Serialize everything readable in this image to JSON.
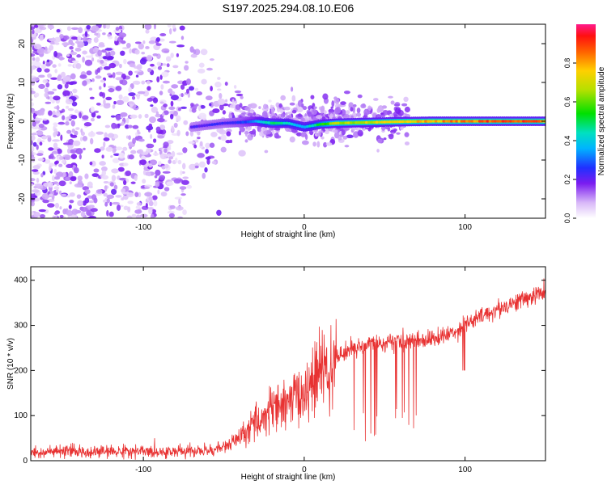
{
  "figure_title": "S197.2025.294.08.10.E06",
  "chart_data": [
    {
      "type": "heatmap",
      "xlabel": "Height of straight line (km)",
      "ylabel": "Frequency (Hz)",
      "xlim": [
        -170,
        150
      ],
      "ylim": [
        -25,
        25
      ],
      "xticks": [
        -100,
        0,
        100
      ],
      "yticks": [
        -20,
        -10,
        0,
        10,
        20
      ],
      "colorbar": {
        "label": "Normalized spectral amplitude",
        "range": [
          0,
          1
        ],
        "ticks": [
          0.0,
          0.2,
          0.4,
          0.6,
          0.8
        ]
      },
      "ridge": [
        {
          "x": -70,
          "y": -1.5,
          "amp": 0.22
        },
        {
          "x": -60,
          "y": -1.0,
          "amp": 0.25
        },
        {
          "x": -50,
          "y": -0.5,
          "amp": 0.25
        },
        {
          "x": -40,
          "y": -0.3,
          "amp": 0.28
        },
        {
          "x": -30,
          "y": 0.0,
          "amp": 0.35
        },
        {
          "x": -20,
          "y": -0.5,
          "amp": 0.55
        },
        {
          "x": -10,
          "y": -0.5,
          "amp": 0.45
        },
        {
          "x": 0,
          "y": -1.5,
          "amp": 0.4
        },
        {
          "x": 10,
          "y": -0.8,
          "amp": 0.55
        },
        {
          "x": 20,
          "y": -0.5,
          "amp": 0.7
        },
        {
          "x": 40,
          "y": -0.3,
          "amp": 0.75
        },
        {
          "x": 60,
          "y": -0.1,
          "amp": 0.78
        },
        {
          "x": 80,
          "y": 0.0,
          "amp": 0.85
        },
        {
          "x": 100,
          "y": 0.0,
          "amp": 0.9
        },
        {
          "x": 120,
          "y": 0.0,
          "amp": 0.95
        },
        {
          "x": 140,
          "y": 0.0,
          "amp": 0.95
        },
        {
          "x": 150,
          "y": 0.0,
          "amp": 0.9
        }
      ]
    },
    {
      "type": "line",
      "xlabel": "Height of straight line (km)",
      "ylabel": "SNR (10 * v/v)",
      "xlim": [
        -170,
        150
      ],
      "ylim": [
        0,
        430
      ],
      "xticks": [
        -100,
        0,
        100
      ],
      "yticks": [
        0,
        100,
        200,
        300,
        400
      ],
      "color": "#e83232",
      "series": [
        {
          "x": [
            -170,
            -150,
            -120,
            -90,
            -60,
            -50,
            -40,
            -30,
            -20,
            -10,
            0,
            10,
            20,
            30,
            40,
            50,
            60,
            70,
            80,
            90,
            100,
            110,
            120,
            130,
            140,
            150
          ],
          "values": [
            18,
            20,
            20,
            20,
            22,
            30,
            50,
            85,
            110,
            130,
            150,
            195,
            230,
            250,
            258,
            262,
            265,
            268,
            270,
            280,
            300,
            320,
            335,
            350,
            362,
            375
          ]
        }
      ]
    }
  ]
}
